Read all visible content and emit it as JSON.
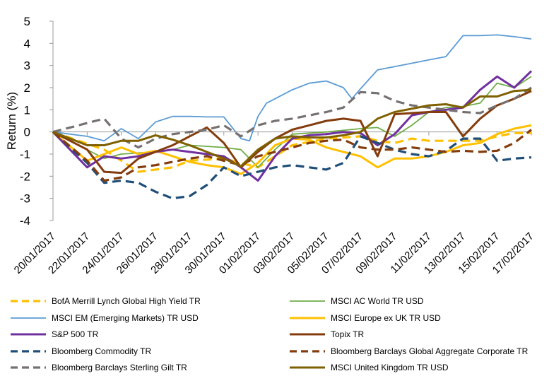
{
  "chart_data": {
    "type": "line",
    "ylabel": "Return (%)",
    "xlabel": "",
    "ylim": [
      -4,
      5
    ],
    "yticks": [
      -4,
      -3,
      -2,
      -1,
      0,
      1,
      2,
      3,
      4,
      5
    ],
    "grid": false,
    "legend_position": "bottom",
    "x_tick_labels": [
      "20/01/2017",
      "22/01/2017",
      "24/01/2017",
      "26/01/2017",
      "28/01/2017",
      "30/01/2017",
      "01/02/2017",
      "03/02/2017",
      "05/02/2017",
      "07/02/2017",
      "09/02/2017",
      "11/02/2017",
      "13/02/2017",
      "15/02/2017",
      "17/02/2017"
    ],
    "x_days": [
      0,
      2,
      4,
      6,
      8,
      10,
      12,
      14,
      16,
      18,
      20,
      22,
      24,
      26,
      28
    ],
    "series": [
      {
        "name": "BofA Merrill Lynch Global High Yield TR",
        "color": "#FFC000",
        "dash": "dashed",
        "x": [
          0,
          3,
          5,
          7,
          8,
          10,
          11,
          12,
          13,
          14,
          16,
          18,
          19,
          20,
          21,
          22,
          23,
          24,
          25,
          26,
          27,
          28
        ],
        "y": [
          0,
          -0.8,
          -1.8,
          -1.6,
          -1.3,
          -1.2,
          -1.4,
          -1.6,
          -1.1,
          -0.6,
          -0.3,
          -0.2,
          -0.4,
          -0.5,
          -0.3,
          -0.4,
          -0.4,
          -0.4,
          -0.4,
          -0.2,
          -0.05,
          -0.05
        ]
      },
      {
        "name": "MSCI AC World TR USD",
        "color": "#70AD47",
        "dash": "solid",
        "x": [
          0,
          3,
          4,
          6,
          7,
          8,
          10,
          11,
          12,
          13,
          14,
          16,
          18,
          19,
          20,
          21,
          22,
          23,
          24,
          25,
          26,
          27,
          28
        ],
        "y": [
          0,
          -1.2,
          -1.0,
          -0.9,
          -0.8,
          -0.6,
          -0.7,
          -0.8,
          -1.6,
          -0.8,
          -0.1,
          0.0,
          0.15,
          0.2,
          -0.2,
          0.3,
          0.9,
          1.1,
          1.15,
          1.3,
          2.2,
          2.0,
          2.5
        ]
      },
      {
        "name": "MSCI EM (Emerging Markets) TR USD",
        "color": "#5B9BD5",
        "dash": "solid",
        "x": [
          0,
          2,
          3,
          4,
          5,
          6,
          7,
          8,
          9,
          10,
          11,
          11.5,
          12,
          12.5,
          13,
          14,
          15,
          16,
          17,
          17.5,
          18,
          19,
          20,
          21,
          22,
          23,
          24,
          25,
          26,
          27,
          28
        ],
        "y": [
          0,
          -0.2,
          -0.4,
          0.15,
          -0.3,
          0.45,
          0.7,
          0.7,
          0.68,
          0.68,
          -0.3,
          -0.4,
          0.7,
          1.3,
          1.5,
          1.9,
          2.2,
          2.3,
          2.0,
          1.5,
          1.95,
          2.8,
          2.95,
          3.1,
          3.25,
          3.4,
          4.35,
          4.35,
          4.38,
          4.3,
          4.2
        ]
      },
      {
        "name": "MSCI Europe ex UK TR USD",
        "color": "#FFC000",
        "dash": "solid",
        "x": [
          0,
          2,
          3,
          4,
          5,
          6,
          7,
          8,
          9,
          10,
          11,
          12,
          13,
          14,
          15,
          16,
          17,
          18,
          19,
          20,
          21,
          22,
          23,
          24,
          25,
          26,
          27,
          28
        ],
        "y": [
          0,
          -1.3,
          -1.0,
          -0.7,
          -1.0,
          -0.85,
          -1.1,
          -1.35,
          -1.5,
          -1.6,
          -1.9,
          -1.4,
          -0.6,
          -0.3,
          -0.35,
          -0.7,
          -0.9,
          -1.1,
          -1.6,
          -1.2,
          -1.2,
          -1.1,
          -0.9,
          -0.6,
          -0.5,
          -0.1,
          0.15,
          0.3
        ]
      },
      {
        "name": "S&P 500 TR",
        "color": "#7030A0",
        "dash": "solid",
        "x": [
          0,
          2,
          3,
          4,
          5,
          6,
          7,
          8,
          9,
          10,
          11,
          12,
          13,
          14,
          15,
          16,
          17,
          18,
          19,
          20,
          21,
          22,
          23,
          24,
          25,
          26,
          27,
          28
        ],
        "y": [
          0,
          -1.6,
          -1.1,
          -1.2,
          -1.1,
          -0.9,
          -0.8,
          -0.9,
          -1.0,
          -1.1,
          -1.6,
          -2.2,
          -1.1,
          -0.3,
          -0.15,
          -0.1,
          0.0,
          -0.05,
          -0.6,
          -0.1,
          0.75,
          0.9,
          1.0,
          1.1,
          1.9,
          2.5,
          2.0,
          2.75
        ]
      },
      {
        "name": "Topix TR",
        "color": "#843C0C",
        "dash": "solid",
        "x": [
          0,
          2,
          3,
          4,
          5,
          6,
          7,
          8,
          9,
          10,
          11,
          12,
          13,
          14,
          15,
          16,
          17,
          18,
          19,
          20,
          21,
          22,
          23,
          24,
          25,
          26,
          27,
          28
        ],
        "y": [
          0,
          -0.8,
          -1.8,
          -1.85,
          -1.2,
          -0.9,
          -0.6,
          -0.2,
          0.2,
          -0.5,
          -1.6,
          -0.9,
          -0.3,
          0.1,
          0.3,
          0.5,
          0.6,
          0.5,
          -1.1,
          0.8,
          0.85,
          0.9,
          0.9,
          -0.2,
          0.6,
          1.2,
          1.5,
          1.85
        ]
      },
      {
        "name": "Bloomberg Commodity TR",
        "color": "#1F4E79",
        "dash": "dashed",
        "x": [
          0,
          2,
          3,
          4,
          5,
          6,
          7,
          8,
          9,
          10,
          11,
          12,
          13,
          14,
          15,
          16,
          17,
          18,
          19,
          20,
          21,
          22,
          23,
          24,
          25,
          26,
          27,
          28
        ],
        "y": [
          0,
          -1.4,
          -2.3,
          -2.2,
          -2.3,
          -2.7,
          -3.0,
          -2.9,
          -2.4,
          -1.6,
          -2.0,
          -1.8,
          -1.6,
          -1.5,
          -1.6,
          -1.7,
          -1.4,
          -0.2,
          -0.5,
          -0.8,
          -1.0,
          -1.1,
          -0.85,
          -0.3,
          -0.3,
          -1.3,
          -1.2,
          -1.15
        ]
      },
      {
        "name": "Bloomberg Barclays Global Aggregate Corporate TR",
        "color": "#843C0C",
        "dash": "dashed",
        "x": [
          0,
          2,
          3,
          4,
          5,
          6,
          7,
          8,
          9,
          10,
          11,
          12,
          13,
          14,
          15,
          16,
          17,
          18,
          19,
          20,
          21,
          22,
          23,
          24,
          25,
          26,
          27,
          28
        ],
        "y": [
          0,
          -1.3,
          -2.2,
          -2.05,
          -1.6,
          -1.5,
          -1.35,
          -1.2,
          -1.1,
          -1.3,
          -1.5,
          -1.1,
          -0.9,
          -0.7,
          -0.5,
          -0.4,
          -0.35,
          -0.7,
          -0.8,
          -0.8,
          -0.7,
          -0.8,
          -0.9,
          -0.85,
          -0.9,
          -0.85,
          -0.5,
          0.1
        ]
      },
      {
        "name": "Bloomberg Barclays Sterling Gilt TR",
        "color": "#767171",
        "dash": "dashed",
        "x": [
          0,
          1,
          2,
          3,
          4,
          5,
          6,
          7,
          8,
          9,
          10,
          11,
          12,
          13,
          14,
          15,
          16,
          17,
          18,
          19,
          20,
          21,
          22,
          23,
          24,
          25,
          26,
          27,
          28
        ],
        "y": [
          0,
          0.2,
          0.4,
          0.6,
          -0.3,
          -0.7,
          -0.3,
          -0.1,
          0.0,
          0.1,
          0.3,
          -0.2,
          0.3,
          0.5,
          0.6,
          0.75,
          0.9,
          1.1,
          1.8,
          1.75,
          1.4,
          1.2,
          1.1,
          1.0,
          0.9,
          0.85,
          1.2,
          1.5,
          2.0
        ]
      },
      {
        "name": "MSCI United Kingdom TR USD",
        "color": "#7F6000",
        "dash": "solid",
        "x": [
          0,
          2,
          3,
          4,
          5,
          6,
          7,
          8,
          9,
          10,
          11,
          12,
          13,
          14,
          15,
          16,
          17,
          18,
          19,
          20,
          21,
          22,
          23,
          24,
          25,
          26,
          27,
          28
        ],
        "y": [
          0,
          -0.6,
          -0.6,
          -0.4,
          -0.4,
          -0.15,
          -0.35,
          -0.6,
          -0.9,
          -1.2,
          -1.55,
          -0.8,
          -0.3,
          -0.2,
          -0.25,
          -0.25,
          -0.15,
          0.0,
          0.6,
          0.9,
          1.05,
          1.2,
          1.25,
          1.1,
          1.6,
          1.6,
          1.85,
          1.9
        ]
      }
    ]
  }
}
